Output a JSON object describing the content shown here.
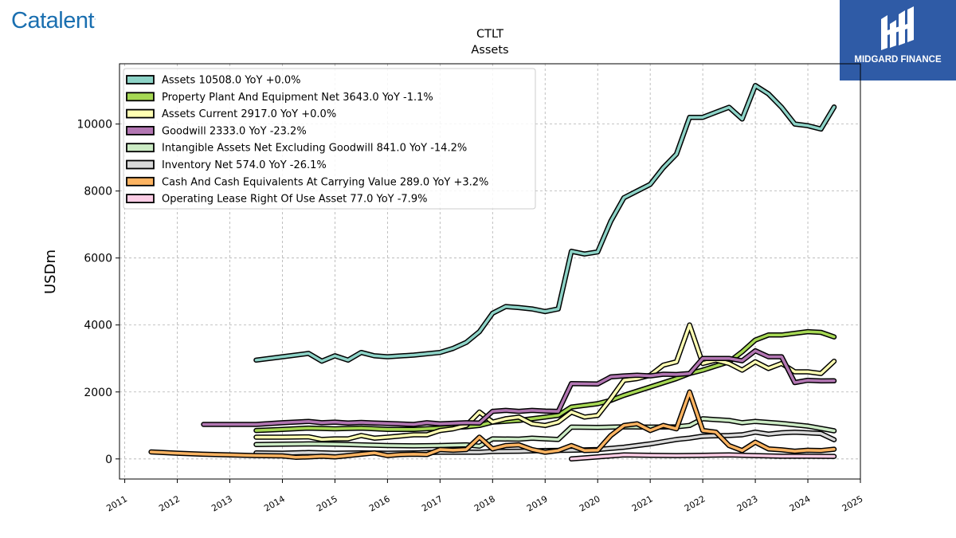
{
  "header": {
    "brand_left": "Catalent",
    "brand_right": "MIDGARD FINANCE",
    "colors": {
      "brand_left": "#1a6fb0",
      "brand_right_bg": "#2f5ba6"
    }
  },
  "chart_data": {
    "type": "line",
    "title": "CTLT",
    "subtitle": "Assets",
    "ylabel": "USDm",
    "xlabel": "",
    "xlim": [
      2010.9,
      2025.0
    ],
    "ylim": [
      -600,
      11800
    ],
    "x_ticks": [
      "2011",
      "2012",
      "2013",
      "2014",
      "2015",
      "2016",
      "2017",
      "2018",
      "2019",
      "2020",
      "2021",
      "2022",
      "2023",
      "2024",
      "2025"
    ],
    "y_ticks": [
      "0",
      "2000",
      "4000",
      "6000",
      "8000",
      "10000"
    ],
    "grid": true,
    "legend_position": "top-left",
    "series": [
      {
        "name": "Assets",
        "legend": "Assets  10508.0 YoY +0.0%",
        "color": "#8dd3c7",
        "points": [
          [
            2013.5,
            2950
          ],
          [
            2014,
            3050
          ],
          [
            2014.5,
            3150
          ],
          [
            2014.75,
            2920
          ],
          [
            2015,
            3080
          ],
          [
            2015.25,
            2950
          ],
          [
            2015.5,
            3180
          ],
          [
            2015.75,
            3080
          ],
          [
            2016,
            3050
          ],
          [
            2016.5,
            3100
          ],
          [
            2017,
            3180
          ],
          [
            2017.25,
            3300
          ],
          [
            2017.5,
            3480
          ],
          [
            2017.75,
            3800
          ],
          [
            2018,
            4350
          ],
          [
            2018.25,
            4550
          ],
          [
            2018.5,
            4520
          ],
          [
            2018.75,
            4480
          ],
          [
            2019,
            4400
          ],
          [
            2019.25,
            4480
          ],
          [
            2019.5,
            6200
          ],
          [
            2019.75,
            6120
          ],
          [
            2020,
            6180
          ],
          [
            2020.25,
            7100
          ],
          [
            2020.5,
            7800
          ],
          [
            2020.75,
            8000
          ],
          [
            2021,
            8200
          ],
          [
            2021.25,
            8700
          ],
          [
            2021.5,
            9100
          ],
          [
            2021.75,
            10200
          ],
          [
            2022,
            10200
          ],
          [
            2022.25,
            10350
          ],
          [
            2022.5,
            10500
          ],
          [
            2022.75,
            10150
          ],
          [
            2023,
            11150
          ],
          [
            2023.25,
            10900
          ],
          [
            2023.5,
            10500
          ],
          [
            2023.75,
            10000
          ],
          [
            2024,
            9950
          ],
          [
            2024.25,
            9850
          ],
          [
            2024.5,
            10508
          ]
        ]
      },
      {
        "name": "Property Plant And Equipment Net",
        "legend": "Property Plant And Equipment Net  3643.0 YoY -1.1%",
        "color": "#a6d854",
        "points": [
          [
            2013.5,
            850
          ],
          [
            2014,
            880
          ],
          [
            2014.5,
            920
          ],
          [
            2015,
            900
          ],
          [
            2015.5,
            920
          ],
          [
            2016,
            880
          ],
          [
            2016.5,
            880
          ],
          [
            2017,
            920
          ],
          [
            2017.5,
            960
          ],
          [
            2017.75,
            1000
          ],
          [
            2018,
            1100
          ],
          [
            2018.5,
            1150
          ],
          [
            2019,
            1250
          ],
          [
            2019.25,
            1300
          ],
          [
            2019.5,
            1550
          ],
          [
            2020,
            1650
          ],
          [
            2020.25,
            1750
          ],
          [
            2020.5,
            1900
          ],
          [
            2021,
            2150
          ],
          [
            2021.5,
            2400
          ],
          [
            2021.75,
            2550
          ],
          [
            2022,
            2650
          ],
          [
            2022.5,
            2900
          ],
          [
            2022.75,
            3200
          ],
          [
            2023,
            3550
          ],
          [
            2023.25,
            3700
          ],
          [
            2023.5,
            3700
          ],
          [
            2023.75,
            3750
          ],
          [
            2024,
            3800
          ],
          [
            2024.25,
            3780
          ],
          [
            2024.5,
            3643
          ]
        ]
      },
      {
        "name": "Assets Current",
        "legend": "Assets Current  2917.0 YoY +0.0%",
        "color": "#ffffb3",
        "points": [
          [
            2013.5,
            650
          ],
          [
            2014,
            650
          ],
          [
            2014.5,
            660
          ],
          [
            2014.75,
            580
          ],
          [
            2015,
            600
          ],
          [
            2015.25,
            600
          ],
          [
            2015.5,
            700
          ],
          [
            2015.75,
            620
          ],
          [
            2016,
            650
          ],
          [
            2016.5,
            720
          ],
          [
            2016.75,
            720
          ],
          [
            2017,
            850
          ],
          [
            2017.25,
            900
          ],
          [
            2017.5,
            1000
          ],
          [
            2017.75,
            1400
          ],
          [
            2018,
            1100
          ],
          [
            2018.25,
            1200
          ],
          [
            2018.5,
            1250
          ],
          [
            2018.75,
            1050
          ],
          [
            2019,
            1000
          ],
          [
            2019.25,
            1100
          ],
          [
            2019.5,
            1400
          ],
          [
            2019.75,
            1250
          ],
          [
            2020,
            1300
          ],
          [
            2020.25,
            1800
          ],
          [
            2020.5,
            2350
          ],
          [
            2020.75,
            2400
          ],
          [
            2021,
            2500
          ],
          [
            2021.25,
            2800
          ],
          [
            2021.5,
            2900
          ],
          [
            2021.75,
            4000
          ],
          [
            2022,
            2850
          ],
          [
            2022.25,
            2950
          ],
          [
            2022.5,
            2850
          ],
          [
            2022.75,
            2650
          ],
          [
            2023,
            2900
          ],
          [
            2023.25,
            2700
          ],
          [
            2023.5,
            2850
          ],
          [
            2023.75,
            2600
          ],
          [
            2024,
            2600
          ],
          [
            2024.25,
            2550
          ],
          [
            2024.5,
            2917
          ]
        ]
      },
      {
        "name": "Goodwill",
        "legend": "Goodwill  2333.0 YoY -23.2%",
        "color": "#b276b2",
        "points": [
          [
            2012.5,
            1030
          ],
          [
            2013,
            1030
          ],
          [
            2013.5,
            1030
          ],
          [
            2014,
            1080
          ],
          [
            2014.5,
            1120
          ],
          [
            2014.75,
            1080
          ],
          [
            2015,
            1100
          ],
          [
            2015.25,
            1070
          ],
          [
            2015.5,
            1090
          ],
          [
            2015.75,
            1070
          ],
          [
            2016,
            1060
          ],
          [
            2016.5,
            1030
          ],
          [
            2016.75,
            1080
          ],
          [
            2017,
            1050
          ],
          [
            2017.5,
            1080
          ],
          [
            2017.75,
            1070
          ],
          [
            2018,
            1420
          ],
          [
            2018.25,
            1450
          ],
          [
            2018.5,
            1420
          ],
          [
            2018.75,
            1450
          ],
          [
            2019,
            1430
          ],
          [
            2019.25,
            1420
          ],
          [
            2019.5,
            2250
          ],
          [
            2020,
            2240
          ],
          [
            2020.25,
            2450
          ],
          [
            2020.5,
            2480
          ],
          [
            2020.75,
            2500
          ],
          [
            2021,
            2480
          ],
          [
            2021.25,
            2530
          ],
          [
            2021.5,
            2520
          ],
          [
            2021.75,
            2550
          ],
          [
            2022,
            3000
          ],
          [
            2022.25,
            3000
          ],
          [
            2022.5,
            3000
          ],
          [
            2022.75,
            2930
          ],
          [
            2023,
            3230
          ],
          [
            2023.25,
            3050
          ],
          [
            2023.5,
            3050
          ],
          [
            2023.75,
            2280
          ],
          [
            2024,
            2350
          ],
          [
            2024.25,
            2330
          ],
          [
            2024.5,
            2333
          ]
        ]
      },
      {
        "name": "Intangible Assets Net Excluding Goodwill",
        "legend": "Intangible Assets Net Excluding Goodwill  841.0 YoY -14.2%",
        "color": "#ccebc5",
        "points": [
          [
            2013.5,
            430
          ],
          [
            2014,
            440
          ],
          [
            2014.5,
            450
          ],
          [
            2015,
            440
          ],
          [
            2015.5,
            420
          ],
          [
            2016,
            400
          ],
          [
            2016.5,
            390
          ],
          [
            2017,
            400
          ],
          [
            2017.5,
            420
          ],
          [
            2017.75,
            380
          ],
          [
            2018,
            600
          ],
          [
            2018.5,
            590
          ],
          [
            2018.75,
            620
          ],
          [
            2019,
            600
          ],
          [
            2019.25,
            580
          ],
          [
            2019.5,
            950
          ],
          [
            2020,
            940
          ],
          [
            2020.5,
            960
          ],
          [
            2021,
            950
          ],
          [
            2021.5,
            960
          ],
          [
            2021.75,
            1000
          ],
          [
            2022,
            1200
          ],
          [
            2022.5,
            1150
          ],
          [
            2022.75,
            1080
          ],
          [
            2023,
            1120
          ],
          [
            2023.5,
            1060
          ],
          [
            2024,
            980
          ],
          [
            2024.5,
            841
          ]
        ]
      },
      {
        "name": "Inventory Net",
        "legend": "Inventory Net  574.0 YoY -26.1%",
        "color": "#d9d9d9",
        "points": [
          [
            2013.5,
            180
          ],
          [
            2014,
            170
          ],
          [
            2014.5,
            190
          ],
          [
            2015,
            170
          ],
          [
            2015.5,
            180
          ],
          [
            2016,
            170
          ],
          [
            2016.5,
            180
          ],
          [
            2017,
            200
          ],
          [
            2017.5,
            200
          ],
          [
            2017.75,
            200
          ],
          [
            2018,
            220
          ],
          [
            2018.5,
            230
          ],
          [
            2019,
            250
          ],
          [
            2019.5,
            260
          ],
          [
            2020,
            280
          ],
          [
            2020.5,
            350
          ],
          [
            2021,
            450
          ],
          [
            2021.5,
            580
          ],
          [
            2021.75,
            620
          ],
          [
            2022,
            680
          ],
          [
            2022.5,
            700
          ],
          [
            2022.75,
            720
          ],
          [
            2023,
            800
          ],
          [
            2023.25,
            740
          ],
          [
            2023.5,
            780
          ],
          [
            2023.75,
            800
          ],
          [
            2024,
            780
          ],
          [
            2024.25,
            760
          ],
          [
            2024.5,
            574
          ]
        ]
      },
      {
        "name": "Cash And Cash Equivalents At Carrying Value",
        "legend": "Cash And Cash Equivalents At Carrying Value  289.0 YoY +3.2%",
        "color": "#fdb462",
        "points": [
          [
            2011.5,
            210
          ],
          [
            2012,
            170
          ],
          [
            2012.5,
            140
          ],
          [
            2013,
            120
          ],
          [
            2013.5,
            100
          ],
          [
            2014,
            90
          ],
          [
            2014.25,
            50
          ],
          [
            2014.5,
            60
          ],
          [
            2014.75,
            80
          ],
          [
            2015,
            60
          ],
          [
            2015.25,
            100
          ],
          [
            2015.5,
            140
          ],
          [
            2015.75,
            180
          ],
          [
            2016,
            100
          ],
          [
            2016.25,
            130
          ],
          [
            2016.5,
            140
          ],
          [
            2016.75,
            130
          ],
          [
            2017,
            280
          ],
          [
            2017.25,
            260
          ],
          [
            2017.5,
            280
          ],
          [
            2017.75,
            650
          ],
          [
            2018,
            300
          ],
          [
            2018.25,
            400
          ],
          [
            2018.5,
            420
          ],
          [
            2018.75,
            280
          ],
          [
            2019,
            200
          ],
          [
            2019.25,
            250
          ],
          [
            2019.5,
            400
          ],
          [
            2019.75,
            250
          ],
          [
            2020,
            260
          ],
          [
            2020.25,
            700
          ],
          [
            2020.5,
            1000
          ],
          [
            2020.75,
            1050
          ],
          [
            2021,
            850
          ],
          [
            2021.25,
            1000
          ],
          [
            2021.5,
            900
          ],
          [
            2021.75,
            2000
          ],
          [
            2022,
            850
          ],
          [
            2022.25,
            800
          ],
          [
            2022.5,
            400
          ],
          [
            2022.75,
            250
          ],
          [
            2023,
            500
          ],
          [
            2023.25,
            300
          ],
          [
            2023.5,
            270
          ],
          [
            2023.75,
            230
          ],
          [
            2024,
            260
          ],
          [
            2024.25,
            250
          ],
          [
            2024.5,
            289
          ]
        ]
      },
      {
        "name": "Operating Lease Right Of Use Asset",
        "legend": "Operating Lease Right Of Use Asset  77.0 YoY -7.9%",
        "color": "#fccde5",
        "points": [
          [
            2019.5,
            0
          ],
          [
            2020,
            60
          ],
          [
            2020.5,
            120
          ],
          [
            2021,
            110
          ],
          [
            2021.5,
            100
          ],
          [
            2022,
            110
          ],
          [
            2022.5,
            120
          ],
          [
            2023,
            100
          ],
          [
            2023.5,
            80
          ],
          [
            2024,
            80
          ],
          [
            2024.5,
            77
          ]
        ]
      }
    ]
  }
}
